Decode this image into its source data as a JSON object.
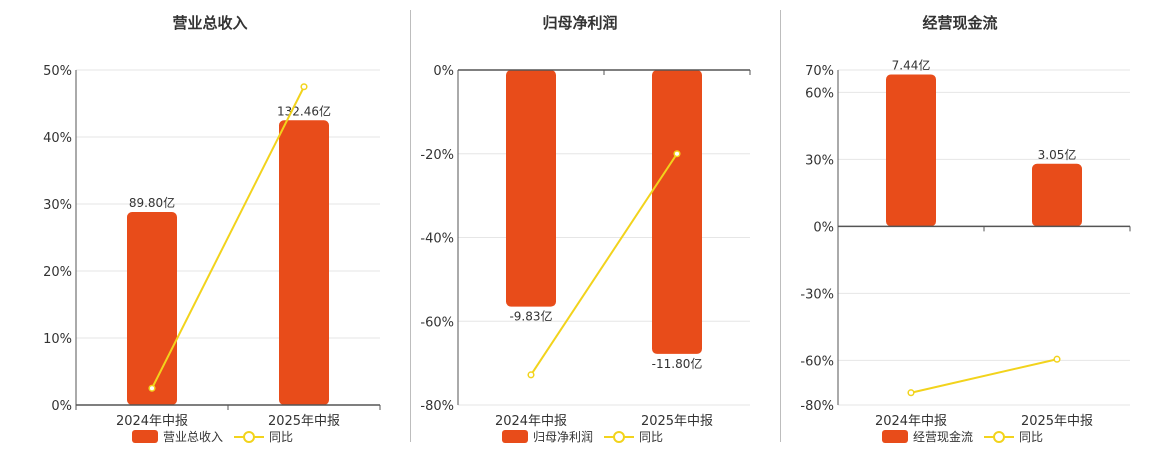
{
  "colors": {
    "bar": "#e84c1a",
    "line": "#f2d31c",
    "axis": "#555555",
    "grid": "#e6e6e6",
    "text": "#333333"
  },
  "chart_data": [
    {
      "type": "bar",
      "title": "营业总收入",
      "categories": [
        "2024年中报",
        "2025年中报"
      ],
      "yticks": [
        0,
        10,
        20,
        30,
        40,
        50
      ],
      "ytick_labels": [
        "0%",
        "10%",
        "20%",
        "30%",
        "40%",
        "50%"
      ],
      "ylim": [
        0,
        50
      ],
      "series": [
        {
          "name": "营业总收入",
          "type": "bar",
          "values": [
            28.8,
            42.5
          ],
          "labels": [
            "89.80亿",
            "132.46亿"
          ]
        },
        {
          "name": "同比",
          "type": "line",
          "values": [
            2.5,
            47.5
          ]
        }
      ],
      "legend": [
        "营业总收入",
        "同比"
      ],
      "legend_position": "bottom"
    },
    {
      "type": "bar",
      "title": "归母净利润",
      "categories": [
        "2024年中报",
        "2025年中报"
      ],
      "yticks": [
        -80,
        -60,
        -40,
        -20,
        0
      ],
      "ytick_labels": [
        "-80%",
        "-60%",
        "-40%",
        "-20%",
        "0%"
      ],
      "ylim": [
        -80,
        0
      ],
      "series": [
        {
          "name": "归母净利润",
          "type": "bar",
          "values": [
            -56.5,
            -67.8
          ],
          "labels": [
            "-9.83亿",
            "-11.80亿"
          ]
        },
        {
          "name": "同比",
          "type": "line",
          "values": [
            -72.8,
            -20.0
          ]
        }
      ],
      "legend": [
        "归母净利润",
        "同比"
      ],
      "legend_position": "bottom"
    },
    {
      "type": "bar",
      "title": "经营现金流",
      "categories": [
        "2024年中报",
        "2025年中报"
      ],
      "yticks": [
        -80,
        -60,
        -30,
        0,
        30,
        60,
        70
      ],
      "ytick_labels": [
        "-80%",
        "-60%",
        "-30%",
        "0%",
        "30%",
        "60%",
        "70%"
      ],
      "ylim": [
        -80,
        70
      ],
      "series": [
        {
          "name": "经营现金流",
          "type": "bar",
          "values": [
            68,
            28
          ],
          "labels": [
            "7.44亿",
            "3.05亿"
          ]
        },
        {
          "name": "同比",
          "type": "line",
          "values": [
            -74.5,
            -59.5
          ]
        }
      ],
      "legend": [
        "经营现金流",
        "同比"
      ],
      "legend_position": "bottom"
    }
  ]
}
